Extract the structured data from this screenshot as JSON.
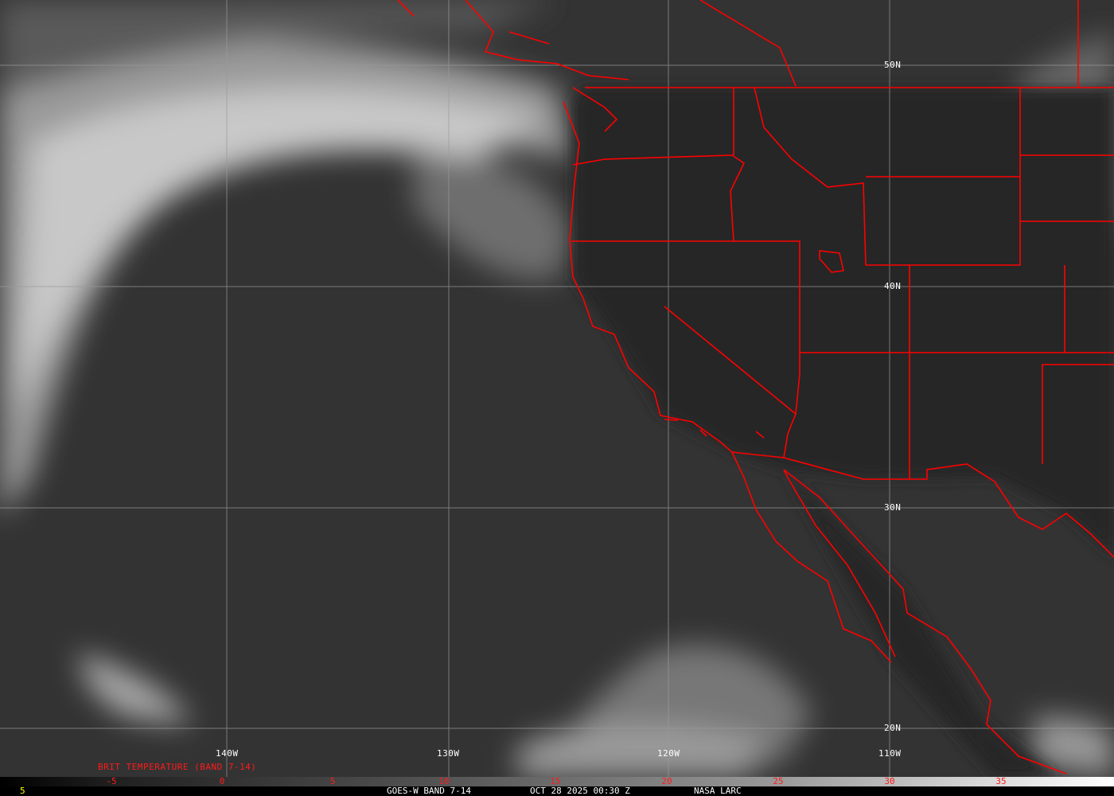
{
  "map": {
    "longitude_labels": [
      "140W",
      "130W",
      "120W",
      "110W"
    ],
    "latitude_labels": [
      "50N",
      "40N",
      "30N",
      "20N"
    ],
    "boundary_color": "#ff0000",
    "grid_color": "#9a9a9a"
  },
  "colorbar": {
    "title": "BRIT TEMPERATURE (BAND 7-14)",
    "ticks": [
      "-5",
      "0",
      "5",
      "10",
      "15",
      "20",
      "25",
      "30",
      "35"
    ],
    "tick_color": "#ff1a1a"
  },
  "footer": {
    "left_value": "5",
    "satellite": "GOES-W BAND 7-14",
    "datetime": "OCT 28 2025 00:30 Z",
    "source": "NASA LARC"
  }
}
